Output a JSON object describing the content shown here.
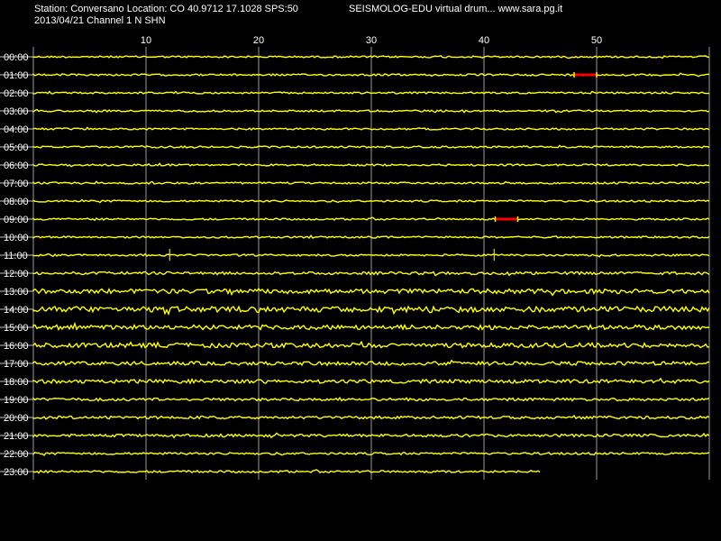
{
  "header": {
    "station_line": "Station: Conversano Location: CO 40.9712 17.1028 SPS:50",
    "date_line": "2013/04/21  Channel 1 N SHN",
    "app_line": "SEISMOLOG-EDU virtual drum... www.sara.pg.it"
  },
  "chart_data": {
    "type": "line",
    "title": "",
    "xlabel": "",
    "ylabel": "",
    "x_ticks": [
      10,
      20,
      30,
      40,
      50
    ],
    "xlim": [
      0,
      60
    ],
    "grid": true,
    "trace_color": "#ffff00",
    "event_color": "#ff0000",
    "rows": [
      {
        "label": "00:00",
        "noise": 1.0
      },
      {
        "label": "01:00",
        "noise": 1.0
      },
      {
        "label": "02:00",
        "noise": 1.0
      },
      {
        "label": "03:00",
        "noise": 1.0
      },
      {
        "label": "04:00",
        "noise": 1.0
      },
      {
        "label": "05:00",
        "noise": 1.0
      },
      {
        "label": "06:00",
        "noise": 1.0
      },
      {
        "label": "07:00",
        "noise": 1.0
      },
      {
        "label": "08:00",
        "noise": 1.0
      },
      {
        "label": "09:00",
        "noise": 1.0
      },
      {
        "label": "10:00",
        "noise": 1.0
      },
      {
        "label": "11:00",
        "noise": 1.0
      },
      {
        "label": "12:00",
        "noise": 1.5
      },
      {
        "label": "13:00",
        "noise": 2.5
      },
      {
        "label": "14:00",
        "noise": 3.0
      },
      {
        "label": "15:00",
        "noise": 2.5
      },
      {
        "label": "16:00",
        "noise": 2.5
      },
      {
        "label": "17:00",
        "noise": 2.0
      },
      {
        "label": "18:00",
        "noise": 2.0
      },
      {
        "label": "19:00",
        "noise": 1.5
      },
      {
        "label": "20:00",
        "noise": 1.5
      },
      {
        "label": "21:00",
        "noise": 1.5
      },
      {
        "label": "22:00",
        "noise": 1.2
      },
      {
        "label": "23:00",
        "noise": 1.2,
        "end_minute": 45
      }
    ],
    "events": [
      {
        "row": "01:00",
        "start_minute": 48,
        "end_minute": 50
      },
      {
        "row": "09:00",
        "start_minute": 41,
        "end_minute": 43
      }
    ],
    "spikes": [
      {
        "row": "11:00",
        "minute": 12.1
      },
      {
        "row": "11:00",
        "minute": 40.9
      }
    ]
  }
}
